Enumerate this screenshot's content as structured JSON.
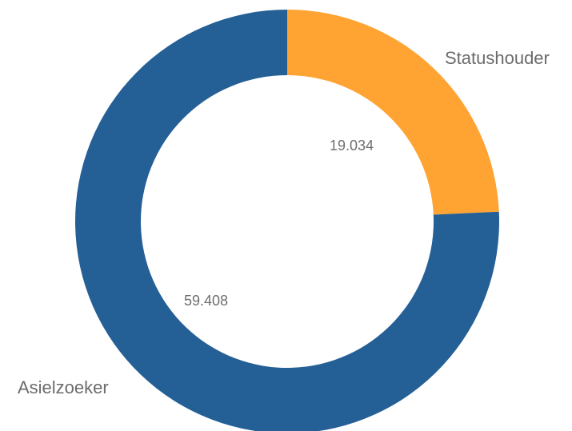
{
  "chart_data": {
    "type": "pie",
    "subtype": "donut",
    "slices": [
      {
        "label": "Statushouder",
        "value": 19034,
        "value_label": "19.034",
        "color": "#ffa333"
      },
      {
        "label": "Asielzoeker",
        "value": 59408,
        "value_label": "59.408",
        "color": "#245f96"
      }
    ],
    "start": "top",
    "direction": "clockwise",
    "legend": "none"
  }
}
